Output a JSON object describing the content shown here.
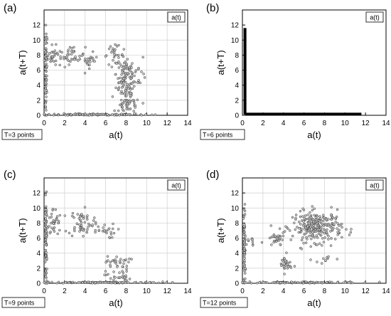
{
  "chart_data": [
    {
      "panel": "(a)",
      "type": "scatter",
      "legend": "a(t)",
      "legend_position": "top-right",
      "lag_label": "T=3 points",
      "xlabel": "a(t)",
      "ylabel": "a(t+T)",
      "xlim": [
        0,
        14
      ],
      "ylim": [
        0,
        14
      ],
      "xticks": [
        0,
        2,
        4,
        6,
        8,
        10,
        12,
        14
      ],
      "yticks": [
        0,
        2,
        4,
        6,
        8,
        10,
        12
      ],
      "grid": true,
      "clusters": [
        {
          "cx": 0.2,
          "cy": 5.5,
          "sx": 0.05,
          "sy": 3.2,
          "n": 70
        },
        {
          "cx": 5.0,
          "cy": 0.1,
          "sx": 2.6,
          "sy": 0.06,
          "n": 120
        },
        {
          "cx": 0.8,
          "cy": 7.8,
          "sx": 0.45,
          "sy": 0.7,
          "n": 35
        },
        {
          "cx": 2.8,
          "cy": 8.0,
          "sx": 0.6,
          "sy": 0.6,
          "n": 35
        },
        {
          "cx": 4.4,
          "cy": 7.3,
          "sx": 0.4,
          "sy": 0.5,
          "n": 25
        },
        {
          "cx": 6.8,
          "cy": 8.0,
          "sx": 0.5,
          "sy": 0.6,
          "n": 30
        },
        {
          "cx": 8.0,
          "cy": 5.5,
          "sx": 0.5,
          "sy": 1.0,
          "n": 60
        },
        {
          "cx": 8.0,
          "cy": 3.2,
          "sx": 0.5,
          "sy": 0.8,
          "n": 50
        },
        {
          "cx": 8.2,
          "cy": 1.2,
          "sx": 0.6,
          "sy": 0.6,
          "n": 40
        },
        {
          "cx": 9.2,
          "cy": 5.8,
          "sx": 0.4,
          "sy": 1.0,
          "n": 15
        }
      ]
    },
    {
      "panel": "(b)",
      "type": "scatter",
      "legend": "a(t)",
      "legend_position": "top-right",
      "lag_label": "T=6 points",
      "xlabel": "a(t)",
      "ylabel": "a(t+T)",
      "xlim": [
        0,
        14
      ],
      "ylim": [
        0,
        14
      ],
      "xticks": [
        0,
        2,
        4,
        6,
        8,
        10,
        12,
        14
      ],
      "yticks": [
        0,
        2,
        4,
        6,
        8,
        10,
        12
      ],
      "grid": false,
      "lines": [
        {
          "from": [
            0.25,
            0.1
          ],
          "to": [
            0.25,
            11.6
          ]
        },
        {
          "from": [
            0.25,
            0.15
          ],
          "to": [
            11.6,
            0.15
          ]
        }
      ]
    },
    {
      "panel": "(c)",
      "type": "scatter",
      "legend": "a(t)",
      "legend_position": "top-right",
      "lag_label": "T=9 points",
      "xlabel": "a(t)",
      "ylabel": "a(t+T)",
      "xlim": [
        0,
        14
      ],
      "ylim": [
        0,
        14
      ],
      "xticks": [
        0,
        2,
        4,
        6,
        8,
        10,
        12,
        14
      ],
      "yticks": [
        0,
        2,
        4,
        6,
        8,
        10,
        12
      ],
      "grid": true,
      "clusters": [
        {
          "cx": 0.2,
          "cy": 5.0,
          "sx": 0.05,
          "sy": 3.0,
          "n": 80
        },
        {
          "cx": 5.5,
          "cy": 0.1,
          "sx": 3.0,
          "sy": 0.05,
          "n": 110
        },
        {
          "cx": 0.9,
          "cy": 8.0,
          "sx": 0.4,
          "sy": 1.0,
          "n": 35
        },
        {
          "cx": 3.6,
          "cy": 8.0,
          "sx": 0.6,
          "sy": 0.9,
          "n": 55
        },
        {
          "cx": 5.6,
          "cy": 7.0,
          "sx": 0.7,
          "sy": 0.5,
          "n": 25
        },
        {
          "cx": 7.2,
          "cy": 2.8,
          "sx": 0.6,
          "sy": 0.4,
          "n": 30
        },
        {
          "cx": 7.2,
          "cy": 0.9,
          "sx": 0.6,
          "sy": 0.5,
          "n": 30
        }
      ]
    },
    {
      "panel": "(d)",
      "type": "scatter",
      "legend": "a(t)",
      "legend_position": "top-right",
      "lag_label": "T=12 points",
      "xlabel": "a(t)",
      "ylabel": "a(t+T)",
      "xlim": [
        0,
        14
      ],
      "ylim": [
        0,
        14
      ],
      "xticks": [
        0,
        2,
        4,
        6,
        8,
        10,
        12,
        14
      ],
      "yticks": [
        0,
        2,
        4,
        6,
        8,
        10,
        12
      ],
      "grid": true,
      "clusters": [
        {
          "cx": 0.2,
          "cy": 4.5,
          "sx": 0.05,
          "sy": 2.8,
          "n": 70
        },
        {
          "cx": 5.5,
          "cy": 0.1,
          "sx": 3.0,
          "sy": 0.05,
          "n": 110
        },
        {
          "cx": 7.3,
          "cy": 7.5,
          "sx": 1.2,
          "sy": 1.0,
          "n": 260
        },
        {
          "cx": 3.3,
          "cy": 5.8,
          "sx": 0.4,
          "sy": 0.5,
          "n": 30
        },
        {
          "cx": 4.2,
          "cy": 2.5,
          "sx": 0.3,
          "sy": 0.6,
          "n": 30
        },
        {
          "cx": 1.0,
          "cy": 5.5,
          "sx": 0.4,
          "sy": 0.4,
          "n": 10
        },
        {
          "cx": 8.0,
          "cy": 3.2,
          "sx": 0.6,
          "sy": 0.4,
          "n": 10
        }
      ]
    }
  ]
}
